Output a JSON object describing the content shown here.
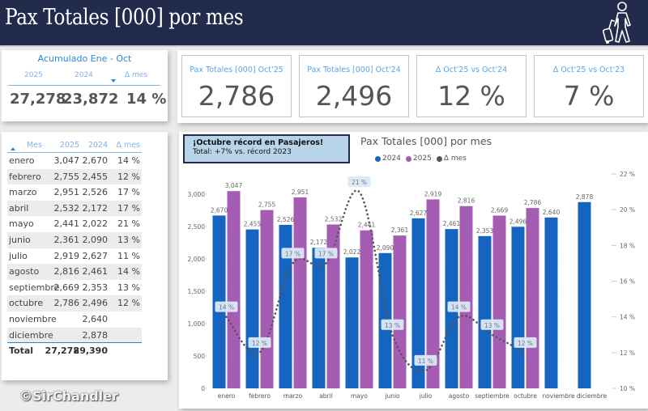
{
  "header": {
    "title": "Pax Totales [000] por mes",
    "icon": "traveler-with-suitcase-icon"
  },
  "accumulated": {
    "title": "Acumulado Ene - Oct",
    "columns": [
      "2025",
      "2024",
      "Δ mes"
    ],
    "values": [
      "27,278",
      "23,872",
      "14 %"
    ]
  },
  "kpis": [
    {
      "label": "Pax Totales [000] Oct'25",
      "value": "2,786"
    },
    {
      "label": "Pax Totales [000] Oct'24",
      "value": "2,496"
    },
    {
      "label": "Δ Oct'25 vs Oct'24",
      "value": "12 %"
    },
    {
      "label": "Δ Oct'25 vs Oct'23",
      "value": "7 %"
    }
  ],
  "table": {
    "columns": [
      "Mes",
      "2025",
      "2024",
      "Δ mes"
    ],
    "rows": [
      [
        "enero",
        "3,047",
        "2,670",
        "14 %"
      ],
      [
        "febrero",
        "2,755",
        "2,455",
        "12 %"
      ],
      [
        "marzo",
        "2,951",
        "2,526",
        "17 %"
      ],
      [
        "abril",
        "2,532",
        "2,172",
        "17 %"
      ],
      [
        "mayo",
        "2,441",
        "2,022",
        "21 %"
      ],
      [
        "junio",
        "2,361",
        "2,090",
        "13 %"
      ],
      [
        "julio",
        "2,919",
        "2,627",
        "11 %"
      ],
      [
        "agosto",
        "2,816",
        "2,461",
        "14 %"
      ],
      [
        "septiembre",
        "2,669",
        "2,353",
        "13 %"
      ],
      [
        "octubre",
        "2,786",
        "2,496",
        "12 %"
      ],
      [
        "noviembre",
        "",
        "2,640",
        ""
      ],
      [
        "diciembre",
        "",
        "2,878",
        ""
      ]
    ],
    "total": [
      "Total",
      "27,278",
      "29,390",
      ""
    ]
  },
  "note": {
    "line1": "¡Octubre récord en Pasajeros!",
    "line2": "Total: +7% vs. récord 2023"
  },
  "watermark": "©SirChandler",
  "colors": {
    "s2024": "#1565c0",
    "s2025": "#a55cb3",
    "delta": "#555555",
    "header_bg": "#232b4d",
    "accent": "#2a86d9"
  },
  "chart_data": {
    "type": "bar",
    "title": "Pax Totales [000] por mes",
    "categories": [
      "enero",
      "febrero",
      "marzo",
      "abril",
      "mayo",
      "junio",
      "julio",
      "agosto",
      "septiembre",
      "octubre",
      "noviembre",
      "diciembre"
    ],
    "series": [
      {
        "name": "2024",
        "type": "bar",
        "axis": "left",
        "values": [
          2670,
          2455,
          2526,
          2172,
          2022,
          2090,
          2627,
          2461,
          2353,
          2496,
          2640,
          2878
        ],
        "labels": [
          "2,670",
          "2,455",
          "2,526",
          "2,172",
          "2,022",
          "2,090",
          "2,627",
          "2,461",
          "2,353",
          "2,496",
          "2,640",
          "2,878"
        ]
      },
      {
        "name": "2025",
        "type": "bar",
        "axis": "left",
        "values": [
          3047,
          2755,
          2951,
          2532,
          2441,
          2361,
          2919,
          2816,
          2669,
          2786,
          null,
          null
        ],
        "labels": [
          "3,047",
          "2,755",
          "2,951",
          "2,532",
          "2,441",
          "2,361",
          "2,919",
          "2,816",
          "2,669",
          "2,786",
          "",
          ""
        ]
      },
      {
        "name": "Δ mes",
        "type": "line",
        "axis": "right",
        "values": [
          14,
          12,
          17,
          17,
          21,
          13,
          11,
          14,
          13,
          12,
          null,
          null
        ],
        "labels": [
          "14 %",
          "12 %",
          "17 %",
          "17 %",
          "21 %",
          "13 %",
          "11 %",
          "14 %",
          "13 %",
          "12 %",
          "",
          ""
        ]
      }
    ],
    "left_axis": {
      "min": 0,
      "max": 3000,
      "ticks": [
        "0",
        "500",
        "1,000",
        "1,500",
        "2,000",
        "2,500",
        "3,000"
      ],
      "tick_values": [
        0,
        500,
        1000,
        1500,
        2000,
        2500,
        3000
      ]
    },
    "right_axis": {
      "min": 10,
      "max": 22,
      "ticks": [
        "10 %",
        "12 %",
        "14 %",
        "16 %",
        "18 %",
        "20 %",
        "22 %"
      ],
      "tick_values": [
        10,
        12,
        14,
        16,
        18,
        20,
        22
      ]
    },
    "legend": [
      "2024",
      "2025",
      "Δ mes"
    ],
    "legend_position": "top-center",
    "grid": true
  }
}
